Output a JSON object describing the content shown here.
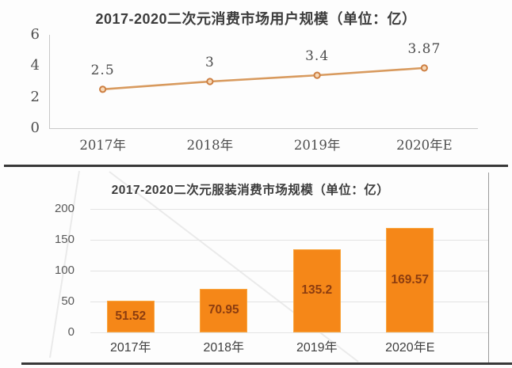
{
  "chart_data": [
    {
      "type": "line",
      "title": "2017-2020二次元消费市场用户规模（单位：亿）",
      "categories": [
        "2017年",
        "2018年",
        "2019年",
        "2020年E"
      ],
      "values": [
        2.5,
        3,
        3.4,
        3.87
      ],
      "data_labels": [
        "2.5",
        "3",
        "3.4",
        "3.87"
      ],
      "y_ticks": [
        6,
        4,
        2,
        0
      ],
      "ylim": [
        0,
        6
      ],
      "grid": false,
      "legend": "none",
      "line_color": "#d89a5e",
      "marker_stroke": "#cd7f42",
      "marker_fill": "#f7d9b7",
      "text_color": "#4d4d4d"
    },
    {
      "type": "bar",
      "title": "2017-2020二次元服装消费市场规模（单位：亿）",
      "categories": [
        "2017年",
        "2018年",
        "2019年",
        "2020年E"
      ],
      "values": [
        51.52,
        70.95,
        135.2,
        169.57
      ],
      "data_labels": [
        "51.52",
        "70.95",
        "135.2",
        "169.57"
      ],
      "y_ticks": [
        200,
        150,
        100,
        50,
        0
      ],
      "ylim": [
        0,
        200
      ],
      "grid": true,
      "legend": "none",
      "bar_color": "#f58718",
      "bar_label_color": "#8c3d10",
      "axis_label_color": "#595959"
    }
  ]
}
